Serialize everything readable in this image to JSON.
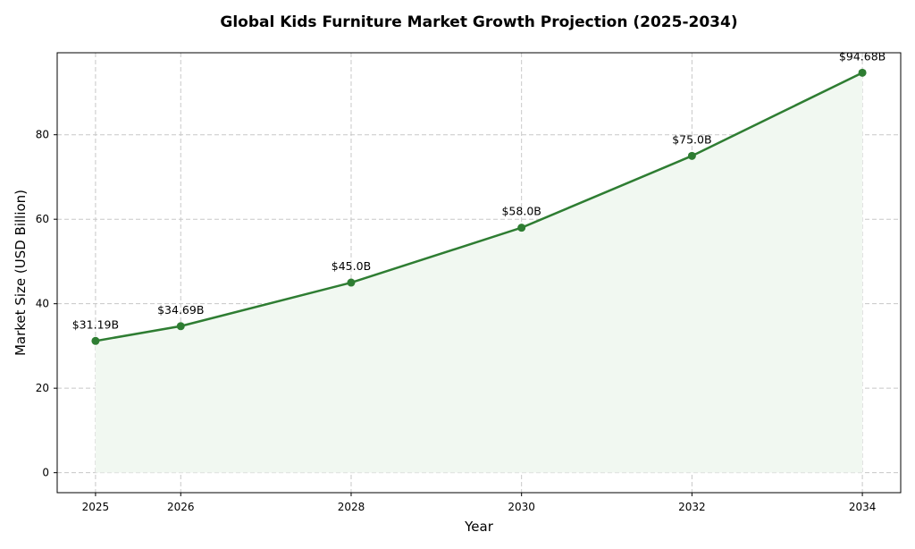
{
  "chart_data": {
    "type": "line",
    "title": "Global Kids Furniture Market Growth Projection (2025-2034)",
    "xlabel": "Year",
    "ylabel": "Market Size (USD Billion)",
    "x": [
      2025,
      2026,
      2028,
      2030,
      2032,
      2034
    ],
    "xtick_labels": [
      "2025",
      "2026",
      "2028",
      "2030",
      "2032",
      "2034"
    ],
    "y": [
      31.19,
      34.69,
      45.0,
      58.0,
      75.0,
      94.68
    ],
    "data_labels": [
      "$31.19B",
      "$34.69B",
      "$45.0B",
      "$58.0B",
      "$75.0B",
      "$94.68B"
    ],
    "yticks": [
      0,
      20,
      40,
      60,
      80
    ],
    "xlim": [
      2024.55,
      2034.45
    ],
    "ylim": [
      -4.73,
      99.41
    ],
    "grid": true,
    "area_fill": true,
    "markers": true,
    "colors": {
      "line": "#2e7d32",
      "fill": "#f1f8f1",
      "grid": "#c8c8c8"
    }
  }
}
